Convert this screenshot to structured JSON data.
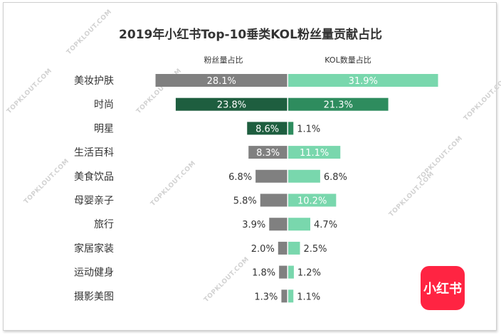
{
  "title": "2019年小红书Top-10垂类KOL粉丝量贡献占比",
  "watermark_text": "TOPKLOUT.COM",
  "logo_text": "小红书",
  "colors": {
    "left_bar": "#808080",
    "left_bar_highlight": "#1e5e3f",
    "right_bar": "#79d7ad",
    "right_bar_highlight": "#2e8c5e",
    "text": "#333333",
    "logo_bg": "#ff2442"
  },
  "chart_data": {
    "type": "bar",
    "orientation": "horizontal-diverging",
    "title": "2019年小红书Top-10垂类KOL粉丝量贡献占比",
    "categories": [
      "美妆护肤",
      "时尚",
      "明星",
      "生活百科",
      "美食饮品",
      "母婴亲子",
      "旅行",
      "家居家装",
      "运动健身",
      "摄影美图"
    ],
    "series": [
      {
        "name": "粉丝量占比",
        "direction": "left",
        "values": [
          28.1,
          23.8,
          8.6,
          8.3,
          6.8,
          5.8,
          3.9,
          2.0,
          1.8,
          1.3
        ],
        "labels": [
          "28.1%",
          "23.8%",
          "8.6%",
          "8.3%",
          "6.8%",
          "5.8%",
          "3.9%",
          "2.0%",
          "1.8%",
          "1.3%"
        ]
      },
      {
        "name": "KOL数量占比",
        "direction": "right",
        "values": [
          31.9,
          21.3,
          1.1,
          11.1,
          6.8,
          10.2,
          4.7,
          2.5,
          1.2,
          1.1
        ],
        "labels": [
          "31.9%",
          "21.3%",
          "1.1%",
          "11.1%",
          "6.8%",
          "10.2%",
          "4.7%",
          "2.5%",
          "1.2%",
          "1.1%"
        ]
      }
    ],
    "highlight_categories": [
      "时尚",
      "明星"
    ],
    "unit": "%"
  }
}
